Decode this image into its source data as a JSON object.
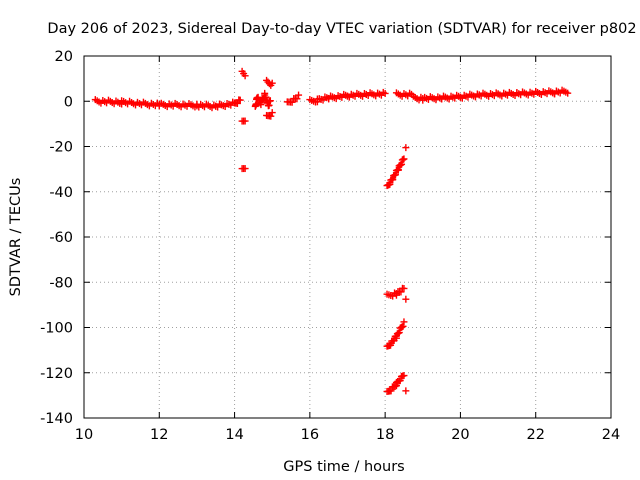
{
  "chart_data": {
    "type": "scatter",
    "title": "Day 206 of 2023, Sidereal Day-to-day VTEC variation (SDTVAR) for receiver p802",
    "xlabel": "GPS time / hours",
    "ylabel": "SDTVAR / TECUs",
    "xlim": [
      10,
      24
    ],
    "ylim": [
      -140,
      20
    ],
    "xticks": [
      10,
      12,
      14,
      16,
      18,
      20,
      22,
      24
    ],
    "yticks": [
      20,
      0,
      -20,
      -40,
      -60,
      -80,
      -100,
      -120,
      -140
    ],
    "grid": true,
    "marker": "+",
    "color": "#ff0000",
    "series": [
      {
        "name": "SDTVAR",
        "segments": [
          {
            "points": [
              [
                10.3,
                0
              ],
              [
                11.0,
                -0.5
              ],
              [
                12.0,
                -1.6
              ],
              [
                13.0,
                -1.8
              ],
              [
                13.5,
                -2.2
              ],
              [
                14.0,
                -1.0
              ],
              [
                14.15,
                0.5
              ]
            ]
          },
          {
            "points": [
              [
                14.2,
                12.5
              ],
              [
                14.28,
                11.5
              ]
            ]
          },
          {
            "points": [
              [
                14.2,
                -9.5
              ],
              [
                14.28,
                -8.5
              ]
            ]
          },
          {
            "points": [
              [
                14.2,
                -30.5
              ],
              [
                14.28,
                -29.5
              ]
            ]
          },
          {
            "points": [
              [
                14.55,
                -3
              ],
              [
                14.6,
                2
              ],
              [
                14.7,
                -1
              ],
              [
                14.8,
                3
              ],
              [
                14.9,
                -2
              ],
              [
                14.95,
                0
              ]
            ]
          },
          {
            "points": [
              [
                14.85,
                8.5
              ],
              [
                15.0,
                7.5
              ]
            ]
          },
          {
            "points": [
              [
                14.85,
                -7
              ],
              [
                15.0,
                -5.5
              ]
            ]
          },
          {
            "points": [
              [
                15.4,
                -1
              ],
              [
                15.7,
                2
              ]
            ]
          },
          {
            "points": [
              [
                16.0,
                0
              ],
              [
                16.2,
                0.5
              ],
              [
                16.5,
                1.5
              ],
              [
                17.0,
                2.5
              ],
              [
                17.5,
                3.0
              ],
              [
                18.0,
                3.2
              ]
            ]
          },
          {
            "points": [
              [
                18.3,
                3.0
              ],
              [
                18.7,
                2.8
              ]
            ]
          },
          {
            "points": [
              [
                18.05,
                -38
              ],
              [
                18.2,
                -34
              ],
              [
                18.35,
                -30
              ],
              [
                18.5,
                -25
              ]
            ]
          },
          {
            "points": [
              [
                18.55,
                -20.5
              ]
            ]
          },
          {
            "points": [
              [
                18.05,
                -86
              ],
              [
                18.3,
                -85
              ],
              [
                18.5,
                -83
              ]
            ]
          },
          {
            "points": [
              [
                18.55,
                -87.5
              ]
            ]
          },
          {
            "points": [
              [
                18.05,
                -109
              ],
              [
                18.3,
                -104
              ],
              [
                18.5,
                -98
              ]
            ]
          },
          {
            "points": [
              [
                18.05,
                -129
              ],
              [
                18.3,
                -125
              ],
              [
                18.5,
                -121
              ]
            ]
          },
          {
            "points": [
              [
                18.55,
                -128
              ]
            ]
          },
          {
            "points": [
              [
                18.75,
                1.5
              ],
              [
                19.0,
                1.2
              ],
              [
                19.5,
                1.5
              ],
              [
                20.0,
                2.0
              ],
              [
                20.5,
                2.8
              ],
              [
                21.0,
                3.0
              ],
              [
                21.5,
                3.3
              ],
              [
                22.0,
                3.6
              ],
              [
                22.5,
                4.0
              ],
              [
                22.85,
                4.3
              ]
            ]
          }
        ]
      }
    ]
  }
}
